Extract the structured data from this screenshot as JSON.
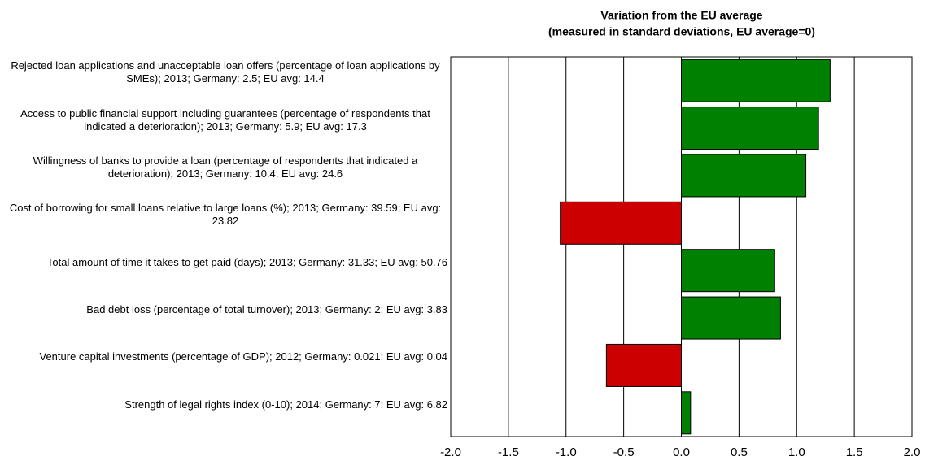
{
  "chart_data": {
    "type": "bar",
    "orientation": "horizontal",
    "title": "Variation from the EU average",
    "subtitle": "(measured in standard deviations, EU average=0)",
    "categories": [
      "Rejected loan applications and unacceptable loan offers (percentage of loan applications by SMEs); 2013; Germany: 2.5; EU avg: 14.4",
      "Access to public financial support including guarantees (percentage of respondents that indicated a deterioration); 2013; Germany: 5.9; EU avg: 17.3",
      "Willingness of banks to provide a loan (percentage of respondents that indicated a deterioration); 2013; Germany: 10.4; EU avg: 24.6",
      "Cost of borrowing for small loans relative to large loans (%); 2013; Germany: 39.59; EU avg: 23.82",
      "Total amount of time it takes to get paid (days); 2013; Germany: 31.33; EU avg: 50.76",
      "Bad debt loss (percentage of total turnover); 2013; Germany: 2; EU avg: 3.83",
      "Venture capital investments (percentage of GDP); 2012; Germany: 0.021; EU avg: 0.04",
      "Strength of legal rights index (0-10); 2014; Germany: 7; EU avg: 6.82"
    ],
    "values": [
      1.29,
      1.19,
      1.08,
      -1.05,
      0.81,
      0.86,
      -0.65,
      0.08
    ],
    "colors": [
      "#008000",
      "#008000",
      "#008000",
      "#cc0000",
      "#008000",
      "#008000",
      "#cc0000",
      "#008000"
    ],
    "xlim": [
      -2.0,
      2.0
    ],
    "xticks": [
      {
        "value": -2.0,
        "label": "-2.0"
      },
      {
        "value": -1.5,
        "label": "-1.5"
      },
      {
        "value": -1.0,
        "label": "-1.0"
      },
      {
        "value": -0.5,
        "label": "-0.5"
      },
      {
        "value": 0.0,
        "label": "0.0"
      },
      {
        "value": 0.5,
        "label": "0.5"
      },
      {
        "value": 1.0,
        "label": "1.0"
      },
      {
        "value": 1.5,
        "label": "1.5"
      },
      {
        "value": 2.0,
        "label": "2.0"
      }
    ],
    "grid": true
  }
}
